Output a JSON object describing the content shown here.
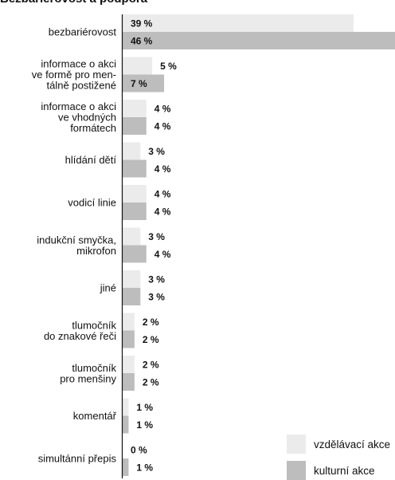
{
  "chart_data": {
    "type": "bar",
    "orientation": "horizontal",
    "title": "Bezbariérovost a podpora",
    "xlabel": "",
    "ylabel": "",
    "value_suffix": " %",
    "xlim": [
      0,
      46
    ],
    "grid": false,
    "legend_position": "bottom-right",
    "categories": [
      [
        "bezbariérovost"
      ],
      [
        "informace o akci",
        "ve formě pro men-",
        "tálně postižené"
      ],
      [
        "informace o akci",
        "ve vhodných",
        "formátech"
      ],
      [
        "hlídání dětí"
      ],
      [
        "vodicí linie"
      ],
      [
        "indukční smyčka,",
        "mikrofon"
      ],
      [
        "jiné"
      ],
      [
        "tlumočník",
        "do znakové řeči"
      ],
      [
        "tlumočník",
        "pro menšiny"
      ],
      [
        "komentář"
      ],
      [
        "simultánní přepis"
      ]
    ],
    "series": [
      {
        "name": "vzdělávací akce",
        "color": "#ebebeb",
        "values": [
          39,
          5,
          4,
          3,
          4,
          3,
          3,
          2,
          2,
          1,
          0
        ]
      },
      {
        "name": "kulturní akce",
        "color": "#bdbdbd",
        "values": [
          46,
          7,
          4,
          4,
          4,
          4,
          3,
          2,
          2,
          1,
          1
        ]
      }
    ]
  }
}
